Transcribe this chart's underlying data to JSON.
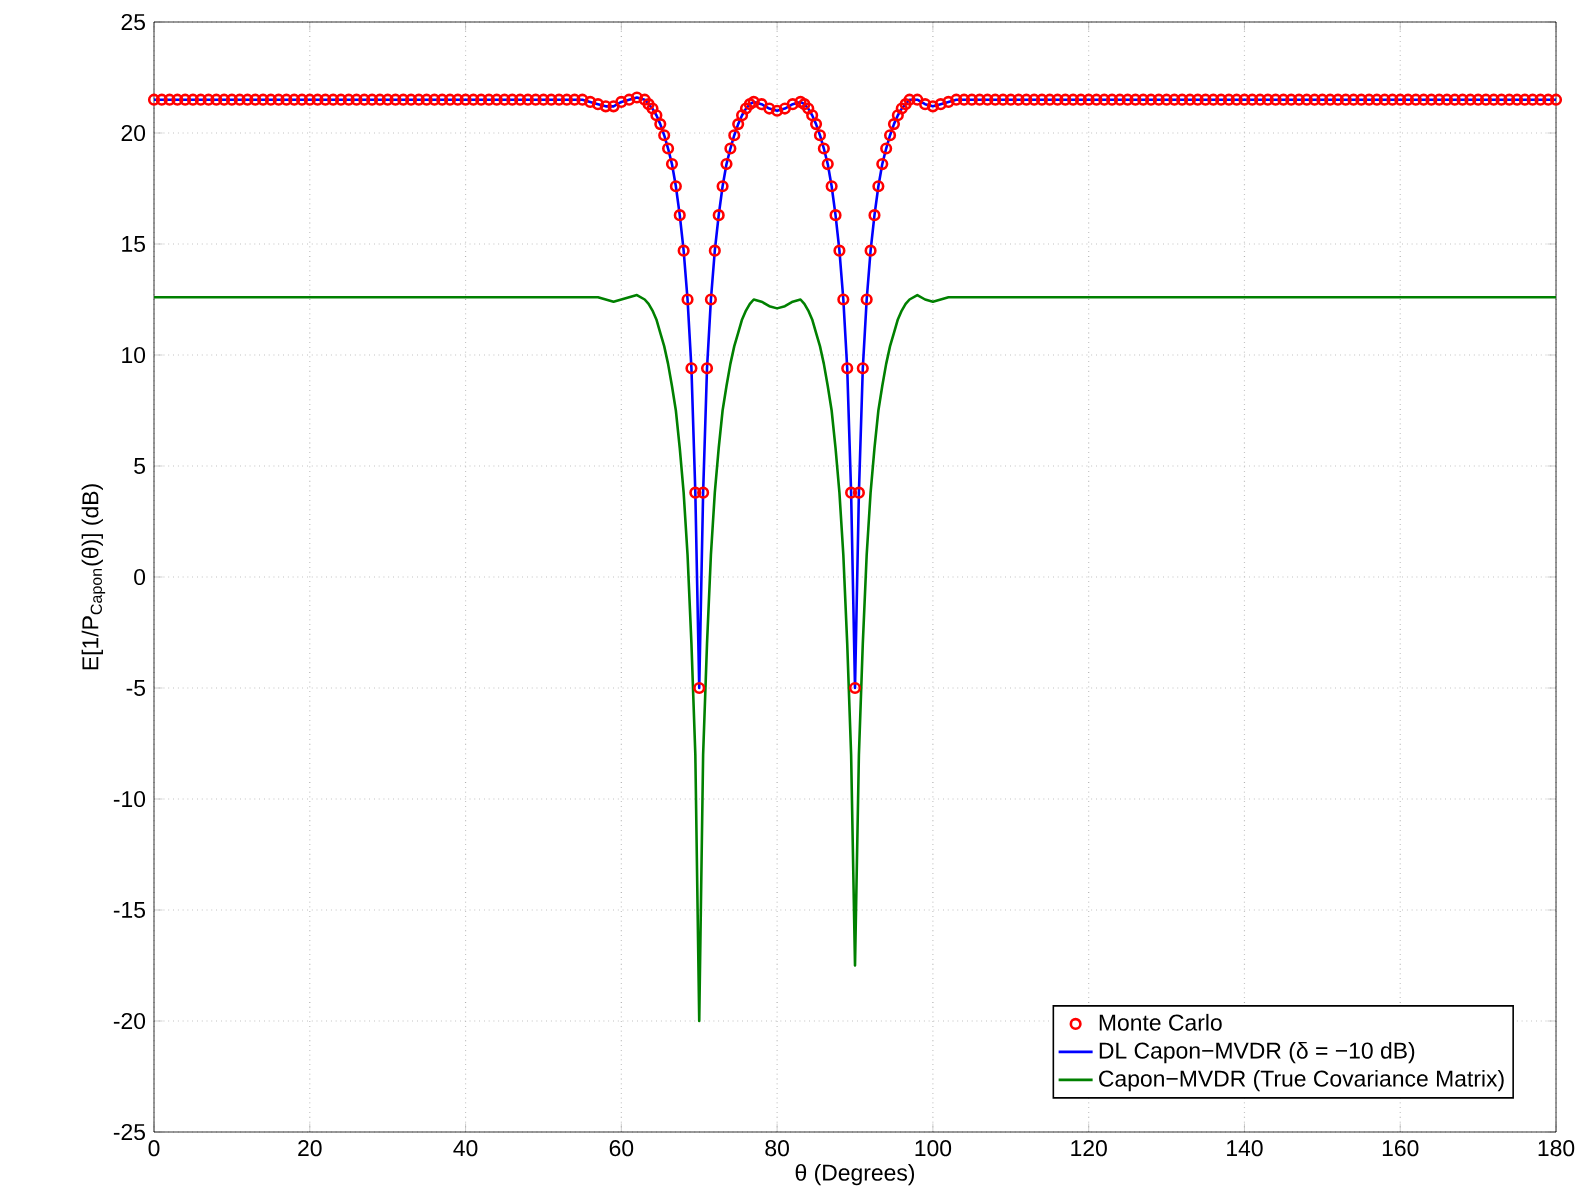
{
  "chart_data": {
    "type": "line",
    "xlabel": "θ (Degrees)",
    "ylabel": "E[1/P$_{Capon}$(θ)] (dB)",
    "x": [
      0,
      1,
      2,
      3,
      4,
      5,
      6,
      7,
      8,
      9,
      10,
      11,
      12,
      13,
      14,
      15,
      16,
      17,
      18,
      19,
      20,
      21,
      22,
      23,
      24,
      25,
      26,
      27,
      28,
      29,
      30,
      31,
      32,
      33,
      34,
      35,
      36,
      37,
      38,
      39,
      40,
      41,
      42,
      43,
      44,
      45,
      46,
      47,
      48,
      49,
      50,
      51,
      52,
      53,
      54,
      55,
      56,
      57,
      58,
      59,
      60,
      61,
      62,
      63,
      63.5,
      64,
      64.5,
      65,
      65.5,
      66,
      66.5,
      67,
      67.5,
      68,
      68.5,
      69,
      69.5,
      70,
      70.5,
      71,
      71.5,
      72,
      72.5,
      73,
      73.5,
      74,
      74.5,
      75,
      75.5,
      76,
      76.5,
      77,
      78,
      79,
      80,
      81,
      82,
      83,
      83.5,
      84,
      84.5,
      85,
      85.5,
      86,
      86.5,
      87,
      87.5,
      88,
      88.5,
      89,
      89.5,
      90,
      90.5,
      91,
      91.5,
      92,
      92.5,
      93,
      93.5,
      94,
      94.5,
      95,
      95.5,
      96,
      96.5,
      97,
      98,
      99,
      100,
      101,
      102,
      103,
      104,
      105,
      106,
      107,
      108,
      109,
      110,
      111,
      112,
      113,
      114,
      115,
      116,
      117,
      118,
      119,
      120,
      121,
      122,
      123,
      124,
      125,
      126,
      127,
      128,
      129,
      130,
      131,
      132,
      133,
      134,
      135,
      136,
      137,
      138,
      139,
      140,
      141,
      142,
      143,
      144,
      145,
      146,
      147,
      148,
      149,
      150,
      151,
      152,
      153,
      154,
      155,
      156,
      157,
      158,
      159,
      160,
      161,
      162,
      163,
      164,
      165,
      166,
      167,
      168,
      169,
      170,
      171,
      172,
      173,
      174,
      175,
      176,
      177,
      178,
      179,
      180
    ],
    "series": [
      {
        "name": "Monte Carlo",
        "type": "scatter",
        "marker": "circle",
        "color": "#ff0000",
        "values": [
          21.5,
          21.5,
          21.5,
          21.5,
          21.5,
          21.5,
          21.5,
          21.5,
          21.5,
          21.5,
          21.5,
          21.5,
          21.5,
          21.5,
          21.5,
          21.5,
          21.5,
          21.5,
          21.5,
          21.5,
          21.5,
          21.5,
          21.5,
          21.5,
          21.5,
          21.5,
          21.5,
          21.5,
          21.5,
          21.5,
          21.5,
          21.5,
          21.5,
          21.5,
          21.5,
          21.5,
          21.5,
          21.5,
          21.5,
          21.5,
          21.5,
          21.5,
          21.5,
          21.5,
          21.5,
          21.5,
          21.5,
          21.5,
          21.5,
          21.5,
          21.5,
          21.5,
          21.5,
          21.5,
          21.5,
          21.5,
          21.4,
          21.3,
          21.2,
          21.2,
          21.4,
          21.5,
          21.6,
          21.5,
          21.3,
          21.1,
          20.8,
          20.4,
          19.9,
          19.3,
          18.6,
          17.6,
          16.3,
          14.7,
          12.5,
          9.4,
          3.8,
          -5,
          3.8,
          9.4,
          12.5,
          14.7,
          16.3,
          17.6,
          18.6,
          19.3,
          19.9,
          20.4,
          20.8,
          21.1,
          21.3,
          21.4,
          21.3,
          21.1,
          21.0,
          21.1,
          21.3,
          21.4,
          21.3,
          21.1,
          20.8,
          20.4,
          19.9,
          19.3,
          18.6,
          17.6,
          16.3,
          14.7,
          12.5,
          9.4,
          3.8,
          -5,
          3.8,
          9.4,
          12.5,
          14.7,
          16.3,
          17.6,
          18.6,
          19.3,
          19.9,
          20.4,
          20.8,
          21.1,
          21.3,
          21.5,
          21.5,
          21.3,
          21.2,
          21.3,
          21.4,
          21.5,
          21.5,
          21.5,
          21.5,
          21.5,
          21.5,
          21.5,
          21.5,
          21.5,
          21.5,
          21.5,
          21.5,
          21.5,
          21.5,
          21.5,
          21.5,
          21.5,
          21.5,
          21.5,
          21.5,
          21.5,
          21.5,
          21.5,
          21.5,
          21.5,
          21.5,
          21.5,
          21.5,
          21.5,
          21.5,
          21.5,
          21.5,
          21.5,
          21.5,
          21.5,
          21.5,
          21.5,
          21.5,
          21.5,
          21.5,
          21.5,
          21.5,
          21.5,
          21.5,
          21.5,
          21.5,
          21.5,
          21.5,
          21.5,
          21.5,
          21.5,
          21.5,
          21.5,
          21.5,
          21.5,
          21.5,
          21.5,
          21.5,
          21.5,
          21.5,
          21.5,
          21.5,
          21.5,
          21.5,
          21.5,
          21.5,
          21.5,
          21.5,
          21.5,
          21.5,
          21.5,
          21.5,
          21.5,
          21.5,
          21.5,
          21.5,
          21.5,
          21.5
        ]
      },
      {
        "name": "DL Capon−MVDR (δ = −10 dB)",
        "line_style": "solid",
        "color": "#0000ff",
        "values": [
          21.5,
          21.5,
          21.5,
          21.5,
          21.5,
          21.5,
          21.5,
          21.5,
          21.5,
          21.5,
          21.5,
          21.5,
          21.5,
          21.5,
          21.5,
          21.5,
          21.5,
          21.5,
          21.5,
          21.5,
          21.5,
          21.5,
          21.5,
          21.5,
          21.5,
          21.5,
          21.5,
          21.5,
          21.5,
          21.5,
          21.5,
          21.5,
          21.5,
          21.5,
          21.5,
          21.5,
          21.5,
          21.5,
          21.5,
          21.5,
          21.5,
          21.5,
          21.5,
          21.5,
          21.5,
          21.5,
          21.5,
          21.5,
          21.5,
          21.5,
          21.5,
          21.5,
          21.5,
          21.5,
          21.5,
          21.5,
          21.4,
          21.3,
          21.2,
          21.2,
          21.4,
          21.5,
          21.6,
          21.5,
          21.3,
          21.1,
          20.8,
          20.4,
          19.9,
          19.3,
          18.6,
          17.6,
          16.3,
          14.7,
          12.5,
          9.4,
          3.8,
          -5,
          3.8,
          9.4,
          12.5,
          14.7,
          16.3,
          17.6,
          18.6,
          19.3,
          19.9,
          20.4,
          20.8,
          21.1,
          21.3,
          21.4,
          21.3,
          21.1,
          21.0,
          21.1,
          21.3,
          21.4,
          21.3,
          21.1,
          20.8,
          20.4,
          19.9,
          19.3,
          18.6,
          17.6,
          16.3,
          14.7,
          12.5,
          9.4,
          3.8,
          -5,
          3.8,
          9.4,
          12.5,
          14.7,
          16.3,
          17.6,
          18.6,
          19.3,
          19.9,
          20.4,
          20.8,
          21.1,
          21.3,
          21.5,
          21.5,
          21.3,
          21.2,
          21.3,
          21.4,
          21.5,
          21.5,
          21.5,
          21.5,
          21.5,
          21.5,
          21.5,
          21.5,
          21.5,
          21.5,
          21.5,
          21.5,
          21.5,
          21.5,
          21.5,
          21.5,
          21.5,
          21.5,
          21.5,
          21.5,
          21.5,
          21.5,
          21.5,
          21.5,
          21.5,
          21.5,
          21.5,
          21.5,
          21.5,
          21.5,
          21.5,
          21.5,
          21.5,
          21.5,
          21.5,
          21.5,
          21.5,
          21.5,
          21.5,
          21.5,
          21.5,
          21.5,
          21.5,
          21.5,
          21.5,
          21.5,
          21.5,
          21.5,
          21.5,
          21.5,
          21.5,
          21.5,
          21.5,
          21.5,
          21.5,
          21.5,
          21.5,
          21.5,
          21.5,
          21.5,
          21.5,
          21.5,
          21.5,
          21.5,
          21.5,
          21.5,
          21.5,
          21.5,
          21.5,
          21.5,
          21.5,
          21.5,
          21.5,
          21.5,
          21.5,
          21.5,
          21.5,
          21.5
        ]
      },
      {
        "name": "Capon−MVDR (True Covariance Matrix)",
        "line_style": "solid",
        "color": "#008000",
        "values": [
          12.6,
          12.6,
          12.6,
          12.6,
          12.6,
          12.6,
          12.6,
          12.6,
          12.6,
          12.6,
          12.6,
          12.6,
          12.6,
          12.6,
          12.6,
          12.6,
          12.6,
          12.6,
          12.6,
          12.6,
          12.6,
          12.6,
          12.6,
          12.6,
          12.6,
          12.6,
          12.6,
          12.6,
          12.6,
          12.6,
          12.6,
          12.6,
          12.6,
          12.6,
          12.6,
          12.6,
          12.6,
          12.6,
          12.6,
          12.6,
          12.6,
          12.6,
          12.6,
          12.6,
          12.6,
          12.6,
          12.6,
          12.6,
          12.6,
          12.6,
          12.6,
          12.6,
          12.6,
          12.6,
          12.6,
          12.6,
          12.6,
          12.6,
          12.5,
          12.4,
          12.5,
          12.6,
          12.7,
          12.5,
          12.3,
          12.0,
          11.6,
          11.0,
          10.4,
          9.6,
          8.6,
          7.5,
          5.8,
          3.8,
          1.0,
          -3.0,
          -8.0,
          -20,
          -8,
          -3,
          1,
          3.8,
          5.8,
          7.5,
          8.6,
          9.6,
          10.4,
          11,
          11.6,
          12,
          12.3,
          12.5,
          12.4,
          12.2,
          12.1,
          12.2,
          12.4,
          12.5,
          12.3,
          12.0,
          11.6,
          11.0,
          10.4,
          9.6,
          8.6,
          7.5,
          5.8,
          3.8,
          1.0,
          -3.0,
          -8.0,
          -17.5,
          -8,
          -3,
          1,
          3.8,
          5.8,
          7.5,
          8.6,
          9.6,
          10.4,
          11,
          11.6,
          12,
          12.3,
          12.5,
          12.7,
          12.5,
          12.4,
          12.5,
          12.6,
          12.6,
          12.6,
          12.6,
          12.6,
          12.6,
          12.6,
          12.6,
          12.6,
          12.6,
          12.6,
          12.6,
          12.6,
          12.6,
          12.6,
          12.6,
          12.6,
          12.6,
          12.6,
          12.6,
          12.6,
          12.6,
          12.6,
          12.6,
          12.6,
          12.6,
          12.6,
          12.6,
          12.6,
          12.6,
          12.6,
          12.6,
          12.6,
          12.6,
          12.6,
          12.6,
          12.6,
          12.6,
          12.6,
          12.6,
          12.6,
          12.6,
          12.6,
          12.6,
          12.6,
          12.6,
          12.6,
          12.6,
          12.6,
          12.6,
          12.6,
          12.6,
          12.6,
          12.6,
          12.6,
          12.6,
          12.6,
          12.6,
          12.6,
          12.6,
          12.6,
          12.6,
          12.6,
          12.6,
          12.6,
          12.6,
          12.6,
          12.6,
          12.6,
          12.6,
          12.6,
          12.6,
          12.6,
          12.6,
          12.6,
          12.6,
          12.6,
          12.6,
          12.6
        ]
      }
    ],
    "xlim": [
      0,
      180
    ],
    "xticks": [
      0,
      20,
      40,
      60,
      80,
      100,
      120,
      140,
      160,
      180
    ],
    "ylim": [
      -25,
      25
    ],
    "yticks": [
      -25,
      -20,
      -15,
      -10,
      -5,
      0,
      5,
      10,
      15,
      20,
      25
    ],
    "grid": true,
    "legend": "bottom right"
  }
}
